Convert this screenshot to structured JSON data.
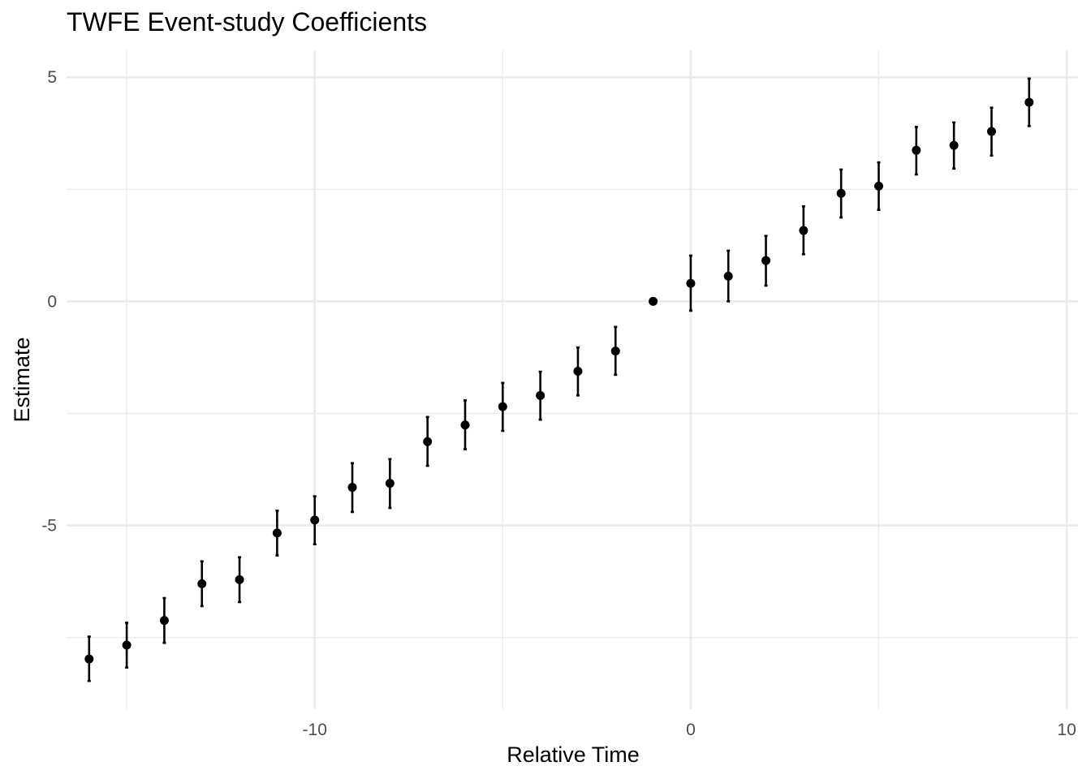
{
  "chart_data": {
    "type": "scatter",
    "title": "TWFE Event-study Coefficients",
    "xlabel": "Relative Time",
    "ylabel": "Estimate",
    "xlim": [
      -16.6,
      10.3
    ],
    "ylim": [
      -9.1,
      5.6
    ],
    "x_ticks": [
      -10,
      0,
      10
    ],
    "x_tick_labels": [
      "-10",
      "0",
      "10"
    ],
    "x_minor_ticks": [
      -15,
      -5,
      5
    ],
    "y_ticks": [
      5,
      0,
      -5
    ],
    "y_tick_labels": [
      "5",
      "0",
      "-5"
    ],
    "y_minor_ticks": [
      2.5,
      -2.5,
      -7.5
    ],
    "grid": true,
    "legend": "none",
    "marker_color": "#000000",
    "grid_color": "#ebebeb",
    "points": [
      {
        "x": -16,
        "y": -7.98,
        "lo": -8.47,
        "hi": -7.48
      },
      {
        "x": -15,
        "y": -7.67,
        "lo": -8.17,
        "hi": -7.17
      },
      {
        "x": -14,
        "y": -7.12,
        "lo": -7.62,
        "hi": -6.62
      },
      {
        "x": -13,
        "y": -6.3,
        "lo": -6.8,
        "hi": -5.8
      },
      {
        "x": -12,
        "y": -6.21,
        "lo": -6.71,
        "hi": -5.71
      },
      {
        "x": -11,
        "y": -5.17,
        "lo": -5.67,
        "hi": -4.67
      },
      {
        "x": -10,
        "y": -4.88,
        "lo": -5.42,
        "hi": -4.35
      },
      {
        "x": -9,
        "y": -4.15,
        "lo": -4.7,
        "hi": -3.61
      },
      {
        "x": -8,
        "y": -4.06,
        "lo": -4.61,
        "hi": -3.52
      },
      {
        "x": -7,
        "y": -3.13,
        "lo": -3.67,
        "hi": -2.58
      },
      {
        "x": -6,
        "y": -2.76,
        "lo": -3.3,
        "hi": -2.21
      },
      {
        "x": -5,
        "y": -2.35,
        "lo": -2.89,
        "hi": -1.82
      },
      {
        "x": -4,
        "y": -2.1,
        "lo": -2.64,
        "hi": -1.57
      },
      {
        "x": -3,
        "y": -1.56,
        "lo": -2.1,
        "hi": -1.03
      },
      {
        "x": -2,
        "y": -1.11,
        "lo": -1.64,
        "hi": -0.57
      },
      {
        "x": -1,
        "y": 0.0,
        "lo": 0.0,
        "hi": 0.0
      },
      {
        "x": 0,
        "y": 0.4,
        "lo": -0.21,
        "hi": 1.02
      },
      {
        "x": 1,
        "y": 0.56,
        "lo": 0.0,
        "hi": 1.13
      },
      {
        "x": 2,
        "y": 0.91,
        "lo": 0.35,
        "hi": 1.46
      },
      {
        "x": 3,
        "y": 1.58,
        "lo": 1.05,
        "hi": 2.12
      },
      {
        "x": 4,
        "y": 2.41,
        "lo": 1.87,
        "hi": 2.94
      },
      {
        "x": 5,
        "y": 2.57,
        "lo": 2.04,
        "hi": 3.1
      },
      {
        "x": 6,
        "y": 3.37,
        "lo": 2.83,
        "hi": 3.89
      },
      {
        "x": 7,
        "y": 3.48,
        "lo": 2.96,
        "hi": 3.99
      },
      {
        "x": 8,
        "y": 3.79,
        "lo": 3.25,
        "hi": 4.32
      },
      {
        "x": 9,
        "y": 4.44,
        "lo": 3.91,
        "hi": 4.97
      }
    ]
  }
}
